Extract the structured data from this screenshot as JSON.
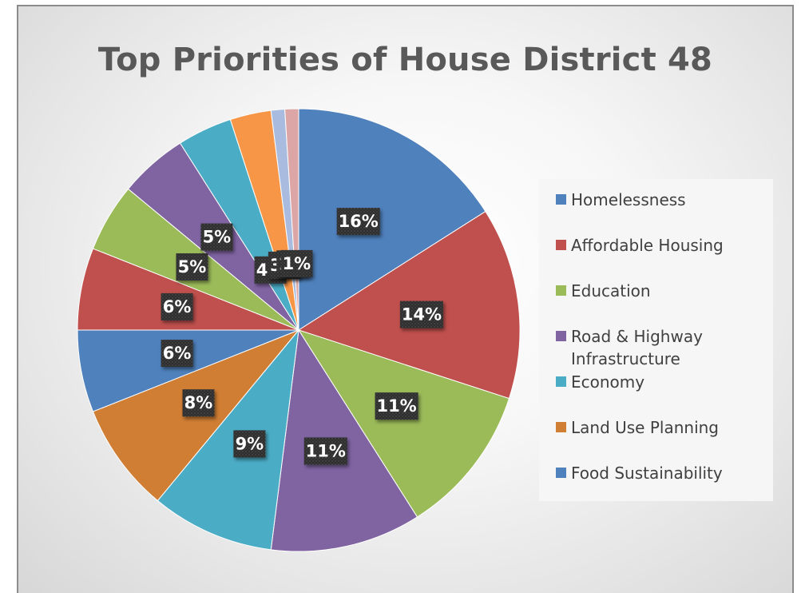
{
  "chart_data": {
    "type": "pie",
    "title": "Top Priorities of House District 48",
    "slices": [
      {
        "label": "Homelessness",
        "value": 16,
        "data_label": "16%",
        "color": "#4f81bd"
      },
      {
        "label": "Affordable Housing",
        "value": 14,
        "data_label": "14%",
        "color": "#c0504d"
      },
      {
        "label": "Education",
        "value": 11,
        "data_label": "11%",
        "color": "#9bbb59"
      },
      {
        "label": "Road & Highway Infrastructure",
        "value": 11,
        "data_label": "11%",
        "color": "#8064a2"
      },
      {
        "label": "Economy",
        "value": 9,
        "data_label": "9%",
        "color": "#4bacc6"
      },
      {
        "label": "Land Use Planning",
        "value": 8,
        "data_label": "8%",
        "color": "#d07e34"
      },
      {
        "label": "Food Sustainability",
        "value": 6,
        "data_label": "6%",
        "color": "#4f81bd"
      },
      {
        "label": "",
        "value": 6,
        "data_label": "6%",
        "color": "#c0504d"
      },
      {
        "label": "",
        "value": 5,
        "data_label": "5%",
        "color": "#9bbb59"
      },
      {
        "label": "",
        "value": 5,
        "data_label": "5%",
        "color": "#8064a2"
      },
      {
        "label": "",
        "value": 4,
        "data_label": "4%",
        "color": "#4bacc6"
      },
      {
        "label": "",
        "value": 3,
        "data_label": "3%",
        "color": "#f79646"
      },
      {
        "label": "",
        "value": 1,
        "data_label": "1%",
        "color": "#a9bce0"
      },
      {
        "label": "",
        "value": 1,
        "data_label": "1%",
        "color": "#dca6a6"
      }
    ],
    "legend": [
      "Homelessness",
      "Affordable Housing",
      "Education",
      "Road & Highway Infrastructure",
      "Economy",
      "Land Use Planning",
      "Food Sustainability"
    ],
    "legend_position": "right"
  }
}
